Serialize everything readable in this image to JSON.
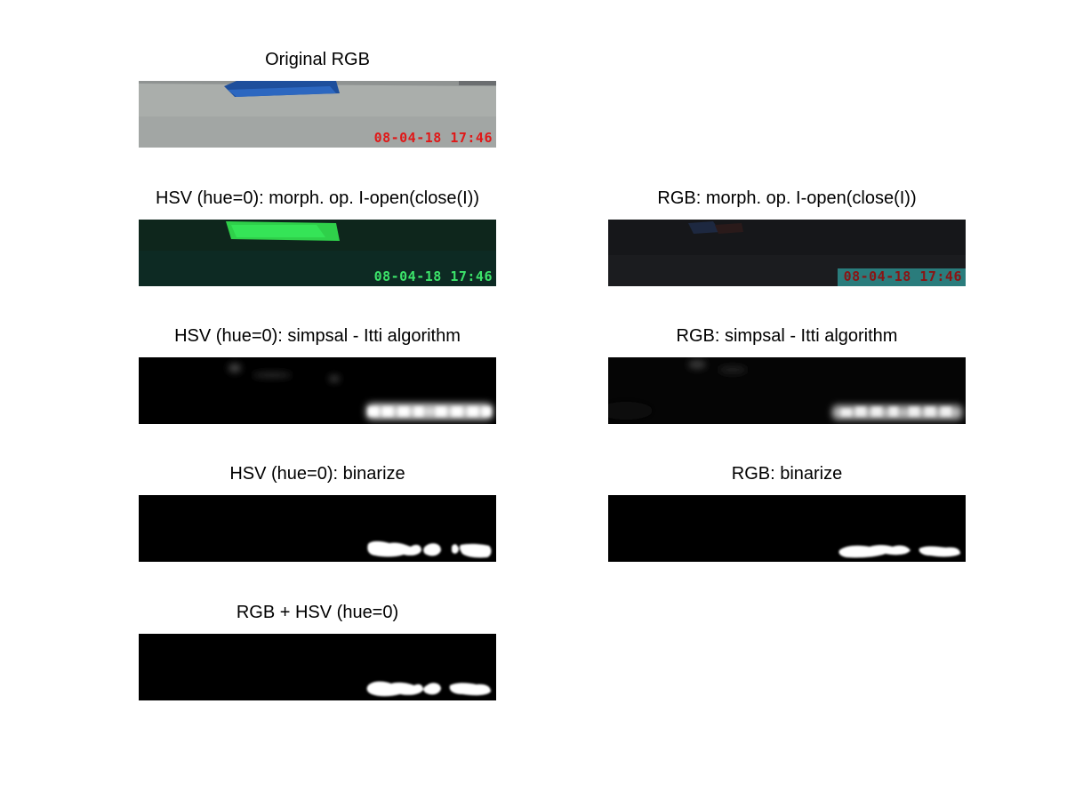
{
  "panels": {
    "original": {
      "title": "Original RGB",
      "timestamp": "08-04-18 17:46",
      "timestamp_color": "#e01818"
    },
    "hsv_morph": {
      "title": "HSV (hue=0): morph. op. I-open(close(I))",
      "timestamp": "08-04-18 17:46",
      "timestamp_color": "#3ce36a"
    },
    "rgb_morph": {
      "title": "RGB: morph. op. I-open(close(I))",
      "timestamp": "08-04-18 17:46",
      "timestamp_color": "#8a1414"
    },
    "hsv_saliency": {
      "title": "HSV (hue=0): simpsal - Itti algorithm"
    },
    "rgb_saliency": {
      "title": "RGB: simpsal - Itti algorithm"
    },
    "hsv_binarize": {
      "title": "HSV (hue=0): binarize"
    },
    "rgb_binarize": {
      "title": "RGB: binarize"
    },
    "combined": {
      "title": "RGB + HSV (hue=0)"
    }
  }
}
